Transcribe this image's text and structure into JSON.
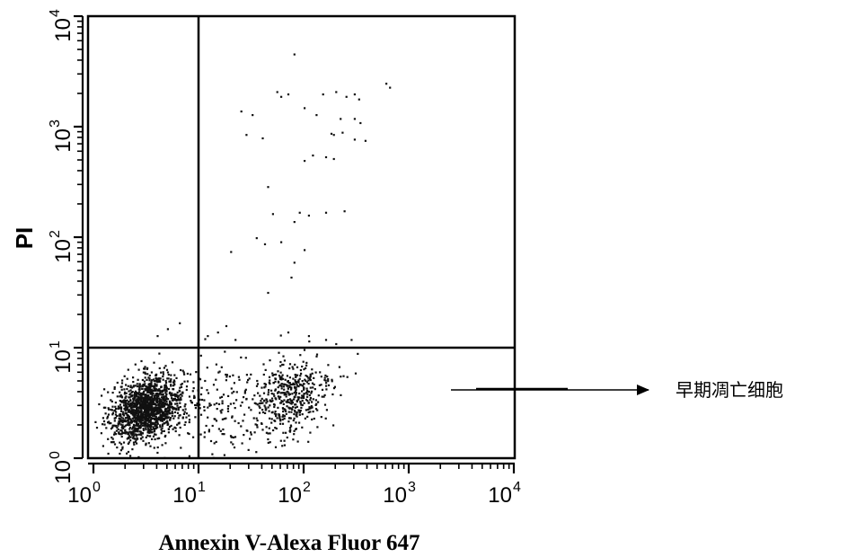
{
  "chart_data": {
    "type": "scatter",
    "title": "",
    "xlabel": "Annexin V-Alexa Fluor 647",
    "ylabel": "PI",
    "x_scale": "log",
    "y_scale": "log",
    "xlim": [
      1,
      10000
    ],
    "ylim": [
      1,
      10000
    ],
    "x_ticks": [
      {
        "base": "10",
        "exp": "0",
        "value": 1
      },
      {
        "base": "10",
        "exp": "1",
        "value": 10
      },
      {
        "base": "10",
        "exp": "2",
        "value": 100
      },
      {
        "base": "10",
        "exp": "3",
        "value": 1000
      },
      {
        "base": "10",
        "exp": "4",
        "value": 10000
      }
    ],
    "y_ticks": [
      {
        "base": "10",
        "exp": "0",
        "value": 1
      },
      {
        "base": "10",
        "exp": "1",
        "value": 10
      },
      {
        "base": "10",
        "exp": "2",
        "value": 100
      },
      {
        "base": "10",
        "exp": "3",
        "value": 1000
      },
      {
        "base": "10",
        "exp": "4",
        "value": 10000
      }
    ],
    "gates": {
      "x": 10,
      "y": 10
    },
    "grid": false,
    "legend": "none",
    "annotation": {
      "text": "早期凋亡细胞",
      "points_to": "lower-right quadrant"
    },
    "populations": [
      {
        "quadrant": "lower-left",
        "center": [
          3.2,
          2.9
        ],
        "spread_log10": [
          0.17,
          0.14
        ],
        "count": 1500
      },
      {
        "quadrant": "lower-right",
        "center": [
          75,
          3.6
        ],
        "spread_log10": [
          0.2,
          0.17
        ],
        "count": 420
      },
      {
        "quadrant": "lower-right",
        "center": [
          30,
          2.5
        ],
        "spread_log10": [
          0.3,
          0.25
        ],
        "count": 120
      },
      {
        "quadrant": "bridge",
        "center": [
          12,
          3.0
        ],
        "spread_log10": [
          0.18,
          0.22
        ],
        "count": 90
      }
    ],
    "points": [
      [
        80,
        4600
      ],
      [
        55,
        2100
      ],
      [
        60,
        1900
      ],
      [
        70,
        2000
      ],
      [
        150,
        2000
      ],
      [
        200,
        2100
      ],
      [
        250,
        1900
      ],
      [
        300,
        2000
      ],
      [
        330,
        1800
      ],
      [
        600,
        2500
      ],
      [
        650,
        2300
      ],
      [
        25,
        1400
      ],
      [
        32,
        1300
      ],
      [
        130,
        1300
      ],
      [
        220,
        1200
      ],
      [
        300,
        1200
      ],
      [
        340,
        1100
      ],
      [
        100,
        1500
      ],
      [
        180,
        880
      ],
      [
        190,
        860
      ],
      [
        230,
        900
      ],
      [
        300,
        780
      ],
      [
        380,
        760
      ],
      [
        28,
        860
      ],
      [
        40,
        800
      ],
      [
        120,
        560
      ],
      [
        160,
        540
      ],
      [
        190,
        520
      ],
      [
        100,
        500
      ],
      [
        45,
        290
      ],
      [
        50,
        165
      ],
      [
        90,
        170
      ],
      [
        110,
        160
      ],
      [
        160,
        170
      ],
      [
        240,
        175
      ],
      [
        80,
        140
      ],
      [
        35,
        100
      ],
      [
        42,
        88
      ],
      [
        60,
        92
      ],
      [
        100,
        78
      ],
      [
        20,
        75
      ],
      [
        80,
        60
      ],
      [
        75,
        44
      ],
      [
        45,
        32
      ],
      [
        18,
        16
      ],
      [
        6.5,
        17
      ],
      [
        4,
        13
      ],
      [
        5,
        15
      ],
      [
        12,
        13
      ],
      [
        15,
        14
      ],
      [
        22,
        12
      ],
      [
        70,
        14
      ],
      [
        110,
        13
      ],
      [
        160,
        12
      ],
      [
        200,
        11
      ],
      [
        280,
        12
      ]
    ]
  }
}
